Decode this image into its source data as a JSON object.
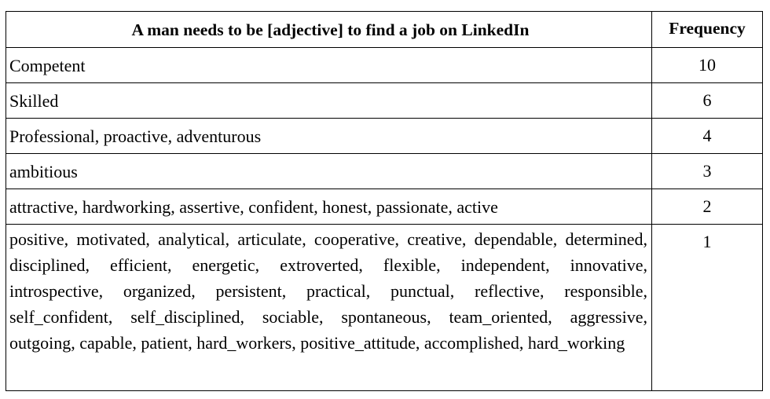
{
  "table": {
    "headers": {
      "adjective": "A man needs to be [adjective] to find a job on LinkedIn",
      "frequency": "Frequency"
    },
    "rows": [
      {
        "adjectives": "Competent",
        "frequency": "10"
      },
      {
        "adjectives": "Skilled",
        "frequency": "6"
      },
      {
        "adjectives": "Professional, proactive, adventurous",
        "frequency": "4"
      },
      {
        "adjectives": "ambitious",
        "frequency": "3"
      },
      {
        "adjectives": "attractive, hardworking, assertive, confident, honest, passionate, active",
        "frequency": "2"
      },
      {
        "adjectives": "positive, motivated, analytical, articulate, cooperative, creative, dependable, determined, disciplined, efficient, energetic, extroverted, flexible, independent, innovative, introspective, organized, persistent, practical, punctual, reflective, responsible, self_confident, self_disciplined, sociable, spontaneous, team_oriented, aggressive, outgoing, capable, patient, hard_workers, positive_attitude, accomplished, hard_working",
        "frequency": "1"
      }
    ]
  }
}
